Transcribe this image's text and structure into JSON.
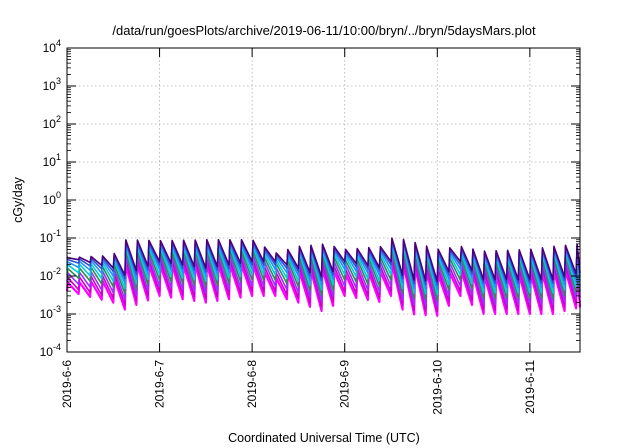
{
  "chart_data": {
    "type": "line",
    "title": "/data/run/goesPlots/archive/2019-06-11/10:00/bryn/../bryn/5daysMars.plot",
    "xlabel": "Coordinated Universal Time (UTC)",
    "ylabel": "cGy/day",
    "yscale": "log",
    "ylim": [
      0.0001,
      10000
    ],
    "y_ticks": [
      {
        "value": 0.0001,
        "mantissa": "10",
        "exp": "-4"
      },
      {
        "value": 0.001,
        "mantissa": "10",
        "exp": "-3"
      },
      {
        "value": 0.01,
        "mantissa": "10",
        "exp": "-2"
      },
      {
        "value": 0.1,
        "mantissa": "10",
        "exp": "-1"
      },
      {
        "value": 1,
        "mantissa": "10",
        "exp": "0"
      },
      {
        "value": 10,
        "mantissa": "10",
        "exp": "1"
      },
      {
        "value": 100,
        "mantissa": "10",
        "exp": "2"
      },
      {
        "value": 1000,
        "mantissa": "10",
        "exp": "3"
      },
      {
        "value": 10000,
        "mantissa": "10",
        "exp": "4"
      }
    ],
    "xlim": [
      "2019-06-06T00:00",
      "2019-06-11T13:00"
    ],
    "x_ticks": [
      "2019-6-6",
      "2019-6-7",
      "2019-6-8",
      "2019-6-9",
      "2019-6-10",
      "2019-6-11"
    ],
    "grid": true,
    "series_colors": [
      "#ff00ff",
      "#cc00cc",
      "#9b30ff",
      "#2e8b57",
      "#00ced1",
      "#1e90ff",
      "#3050d0",
      "#4b0082"
    ],
    "series_min_ratio": [
      1.0,
      1.3,
      1.8,
      2.6,
      3.6,
      5.0,
      6.5,
      8.0
    ],
    "series_max_ratio": [
      0.22,
      0.3,
      0.4,
      0.52,
      0.65,
      0.78,
      0.9,
      1.0
    ],
    "envelope": [
      {
        "t": "2019-06-06T00:00",
        "max": 0.03,
        "min": 0.004
      },
      {
        "t": "2019-06-06T12:00",
        "max": 0.035,
        "min": 0.002
      },
      {
        "t": "2019-06-06T14:00",
        "max": 0.09,
        "min": 0.0012
      },
      {
        "t": "2019-06-07T00:00",
        "max": 0.085,
        "min": 0.003
      },
      {
        "t": "2019-06-07T12:00",
        "max": 0.09,
        "min": 0.002
      },
      {
        "t": "2019-06-08T00:00",
        "max": 0.09,
        "min": 0.003
      },
      {
        "t": "2019-06-08T06:00",
        "max": 0.04,
        "min": 0.003
      },
      {
        "t": "2019-06-08T12:00",
        "max": 0.06,
        "min": 0.002
      },
      {
        "t": "2019-06-08T19:00",
        "max": 0.07,
        "min": 0.0011
      },
      {
        "t": "2019-06-09T00:00",
        "max": 0.05,
        "min": 0.003
      },
      {
        "t": "2019-06-09T10:00",
        "max": 0.06,
        "min": 0.002
      },
      {
        "t": "2019-06-09T12:00",
        "max": 0.1,
        "min": 0.003
      },
      {
        "t": "2019-06-09T16:00",
        "max": 0.09,
        "min": 0.001
      },
      {
        "t": "2019-06-10T00:00",
        "max": 0.05,
        "min": 0.0009
      },
      {
        "t": "2019-06-10T06:00",
        "max": 0.06,
        "min": 0.003
      },
      {
        "t": "2019-06-10T12:00",
        "max": 0.045,
        "min": 0.001
      },
      {
        "t": "2019-06-11T00:00",
        "max": 0.05,
        "min": 0.001
      },
      {
        "t": "2019-06-11T06:00",
        "max": 0.06,
        "min": 0.001
      },
      {
        "t": "2019-06-11T13:00",
        "max": 0.07,
        "min": 0.0015
      }
    ],
    "cycle_hours": 3
  }
}
